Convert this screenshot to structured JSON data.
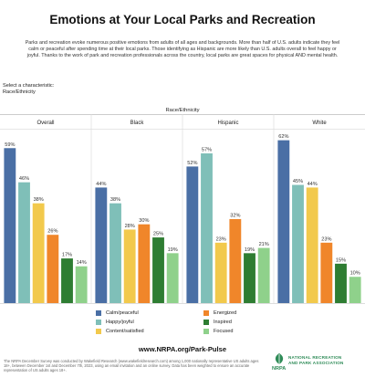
{
  "header": {
    "title": "Emotions at Your Local Parks and Recreation",
    "intro": "Parks and recreation evoke numerous positive emotions from adults of all ages and backgrounds. More than half of U.S. adults indicate they feel calm or peaceful after spending time at their local parks. Those identifying as Hispanic are more likely than U.S. adults overall to feel happy or joyful. Thanks to the work of park and recreation professionals across the country, local parks are great spaces for physical AND mental health."
  },
  "selector": {
    "label": "Select a characteristic:",
    "value": "Race/Ethnicity"
  },
  "colors": {
    "calm": "#4a6fa5",
    "happy": "#7fbfb8",
    "content": "#f2c94c",
    "energized": "#f0862a",
    "inspired": "#2e7d32",
    "focused": "#8fd18b",
    "grid": "#dddddd",
    "label": "#333333"
  },
  "chart_data": {
    "type": "bar",
    "facet_label": "Race/Ethnicity",
    "facets": [
      "Overall",
      "Black",
      "Hispanic",
      "White"
    ],
    "series": [
      {
        "name": "Calm/peaceful",
        "key": "calm",
        "values": [
          59,
          44,
          52,
          62
        ]
      },
      {
        "name": "Happy/joyful",
        "key": "happy",
        "values": [
          46,
          38,
          57,
          45
        ]
      },
      {
        "name": "Content/satisfied",
        "key": "content",
        "values": [
          38,
          28,
          23,
          44
        ]
      },
      {
        "name": "Energized",
        "key": "energized",
        "values": [
          26,
          30,
          32,
          23
        ]
      },
      {
        "name": "Inspired",
        "key": "inspired",
        "values": [
          17,
          25,
          19,
          15
        ]
      },
      {
        "name": "Focused",
        "key": "focused",
        "values": [
          14,
          19,
          21,
          10
        ]
      }
    ],
    "ylim": [
      0,
      65
    ],
    "value_suffix": "%",
    "legend": "bottom"
  },
  "footer": {
    "url": "www.NRPA.org/Park-Pulse",
    "note": "The NRPA December Survey was conducted by Wakefield Research (www.wakefieldresearch.com) among 1,000 nationally representative US adults ages 18+, between December 1st and December 7th, 2023, using an email invitation and an online survey. Data has been weighted to ensure an accurate representation of US adults ages 18+.",
    "logo_text_line1": "NATIONAL RECREATION",
    "logo_text_line2": "AND PARK ASSOCIATION",
    "logo_abbr": "NRPA"
  }
}
